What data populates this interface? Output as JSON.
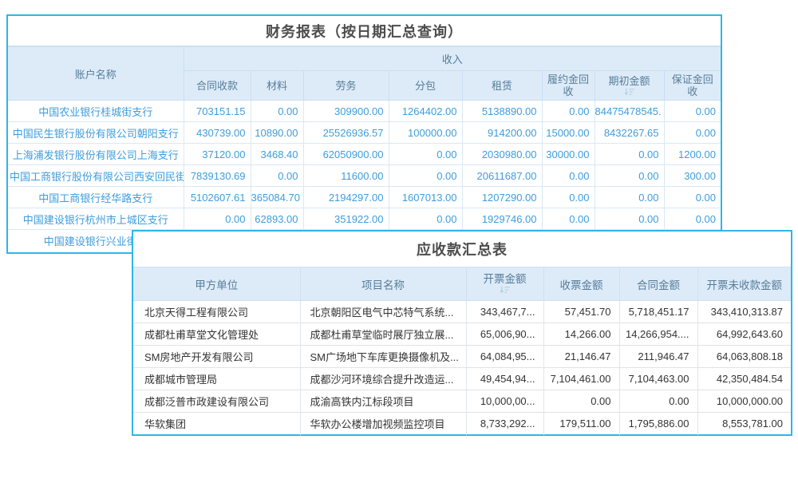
{
  "colors": {
    "panel_border": "#2eb6ea",
    "header_bg": "#ddebf8",
    "header_text": "#567c9a",
    "data_blue": "#3e9ddc",
    "data_dark": "#333333",
    "title_text": "#4c4c4c"
  },
  "table1": {
    "title": "财务报表（按日期汇总查询）",
    "account_header": "账户名称",
    "group_header": "收入",
    "columns": [
      "合同收款",
      "材料",
      "劳务",
      "分包",
      "租赁",
      "履约金回收",
      "期初金额",
      "保证金回收"
    ],
    "sorted_column": "期初金额",
    "rows": [
      {
        "account": "中国农业银行桂城街支行",
        "values": [
          "703151.15",
          "0.00",
          "309900.00",
          "1264402.00",
          "5138890.00",
          "0.00",
          "84475478545.",
          "0.00"
        ]
      },
      {
        "account": "中国民生银行股份有限公司朝阳支行",
        "values": [
          "430739.00",
          "10890.00",
          "25526936.57",
          "100000.00",
          "914200.00",
          "15000.00",
          "8432267.65",
          "0.00"
        ]
      },
      {
        "account": "上海浦发银行股份有限公司上海支行",
        "values": [
          "37120.00",
          "3468.40",
          "62050900.00",
          "0.00",
          "2030980.00",
          "30000.00",
          "0.00",
          "1200.00"
        ]
      },
      {
        "account": "中国工商银行股份有限公司西安回民街支",
        "values": [
          "7839130.69",
          "0.00",
          "11600.00",
          "0.00",
          "20611687.00",
          "0.00",
          "0.00",
          "300.00"
        ]
      },
      {
        "account": "中国工商银行经华路支行",
        "values": [
          "5102607.61",
          "365084.70",
          "2194297.00",
          "1607013.00",
          "1207290.00",
          "0.00",
          "0.00",
          "0.00"
        ]
      },
      {
        "account": "中国建设银行杭州市上城区支行",
        "values": [
          "0.00",
          "62893.00",
          "351922.00",
          "0.00",
          "1929746.00",
          "0.00",
          "0.00",
          "0.00"
        ]
      },
      {
        "account": "中国建设银行兴业街支",
        "values": [
          "",
          "",
          "",
          "",
          "",
          "",
          "",
          ""
        ]
      }
    ]
  },
  "table2": {
    "title": "应收款汇总表",
    "columns": [
      "甲方单位",
      "项目名称",
      "开票金额",
      "收票金额",
      "合同金额",
      "开票未收款金额"
    ],
    "sorted_column": "开票金额",
    "rows": [
      {
        "client": "北京天得工程有限公司",
        "project": "北京朝阳区电气中芯特气系统...",
        "invoiced": "343,467,7...",
        "received": "57,451.70",
        "contract": "5,718,451.17",
        "unpaid": "343,410,313.87"
      },
      {
        "client": "成都杜甫草堂文化管理处",
        "project": "成都杜甫草堂临时展厅独立展...",
        "invoiced": "65,006,90...",
        "received": "14,266.00",
        "contract": "14,266,954....",
        "unpaid": "64,992,643.60"
      },
      {
        "client": "SM房地产开发有限公司",
        "project": "SM广场地下车库更换摄像机及...",
        "invoiced": "64,084,95...",
        "received": "21,146.47",
        "contract": "211,946.47",
        "unpaid": "64,063,808.18"
      },
      {
        "client": "成都城市管理局",
        "project": "成都沙河环境综合提升改造运...",
        "invoiced": "49,454,94...",
        "received": "7,104,461.00",
        "contract": "7,104,463.00",
        "unpaid": "42,350,484.54"
      },
      {
        "client": "成都泛普市政建设有限公司",
        "project": "成渝高铁内江标段项目",
        "invoiced": "10,000,00...",
        "received": "0.00",
        "contract": "0.00",
        "unpaid": "10,000,000.00"
      },
      {
        "client": "华软集团",
        "project": "华软办公楼增加视频监控项目",
        "invoiced": "8,733,292...",
        "received": "179,511.00",
        "contract": "1,795,886.00",
        "unpaid": "8,553,781.00"
      }
    ]
  }
}
